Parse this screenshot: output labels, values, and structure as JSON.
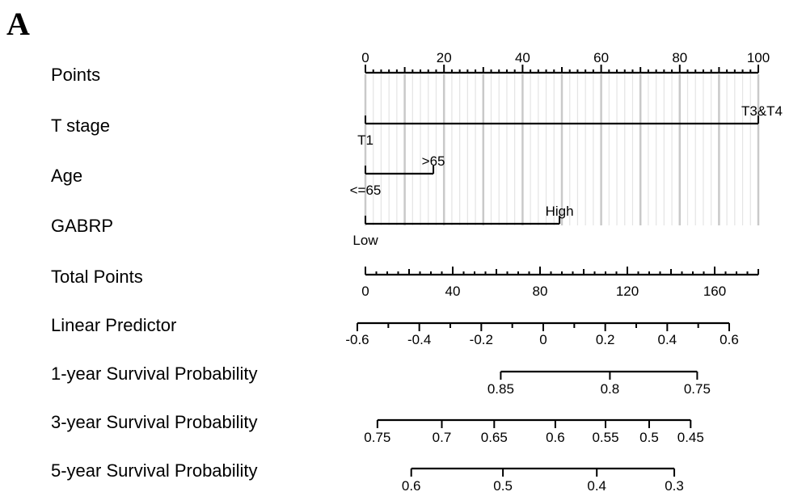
{
  "panel_letter": "A",
  "chart_data": {
    "type": "nomogram",
    "rows": [
      {
        "label": "Points",
        "kind": "points_axis",
        "min": 0,
        "max": 100,
        "major": [
          0,
          20,
          40,
          60,
          80,
          100
        ],
        "minor_step": 2,
        "mid_step": 10
      },
      {
        "label": "T stage",
        "kind": "variable",
        "levels": [
          {
            "name": "T1",
            "points": 0
          },
          {
            "name": "T3&T4",
            "points": 100
          }
        ]
      },
      {
        "label": "Age",
        "kind": "variable",
        "levels": [
          {
            "name": "<=65",
            "points": 0
          },
          {
            "name": ">65",
            "points": 17.3
          }
        ]
      },
      {
        "label": "GABRP",
        "kind": "variable",
        "levels": [
          {
            "name": "Low",
            "points": 0
          },
          {
            "name": "High",
            "points": 49.4
          }
        ]
      },
      {
        "label": "Total Points",
        "kind": "total_axis",
        "min": 0,
        "max": 180,
        "major": [
          0,
          40,
          80,
          120,
          160
        ],
        "minor_step": 5
      },
      {
        "label": "Linear Predictor",
        "kind": "lp_axis",
        "min": -0.6,
        "max": 0.6,
        "major": [
          -0.6,
          -0.4,
          -0.2,
          0,
          0.2,
          0.4,
          0.6
        ],
        "minor_step": 0.1
      },
      {
        "label": "1-year Survival Probability",
        "kind": "prob_axis",
        "ticks": [
          {
            "label": "0.85",
            "total": 62
          },
          {
            "label": "0.8",
            "total": 112
          },
          {
            "label": "0.75",
            "total": 152
          }
        ]
      },
      {
        "label": "3-year Survival Probability",
        "kind": "prob_axis",
        "ticks": [
          {
            "label": "0.75",
            "total": 5.5
          },
          {
            "label": "0.7",
            "total": 35
          },
          {
            "label": "0.65",
            "total": 59
          },
          {
            "label": "0.6",
            "total": 87
          },
          {
            "label": "0.55",
            "total": 110
          },
          {
            "label": "0.5",
            "total": 130
          },
          {
            "label": "0.45",
            "total": 149
          }
        ]
      },
      {
        "label": "5-year Survival Probability",
        "kind": "prob_axis",
        "ticks": [
          {
            "label": "0.6",
            "total": 21
          },
          {
            "label": "0.5",
            "total": 63
          },
          {
            "label": "0.4",
            "total": 106
          },
          {
            "label": "0.3",
            "total": 141.5
          }
        ]
      }
    ]
  }
}
